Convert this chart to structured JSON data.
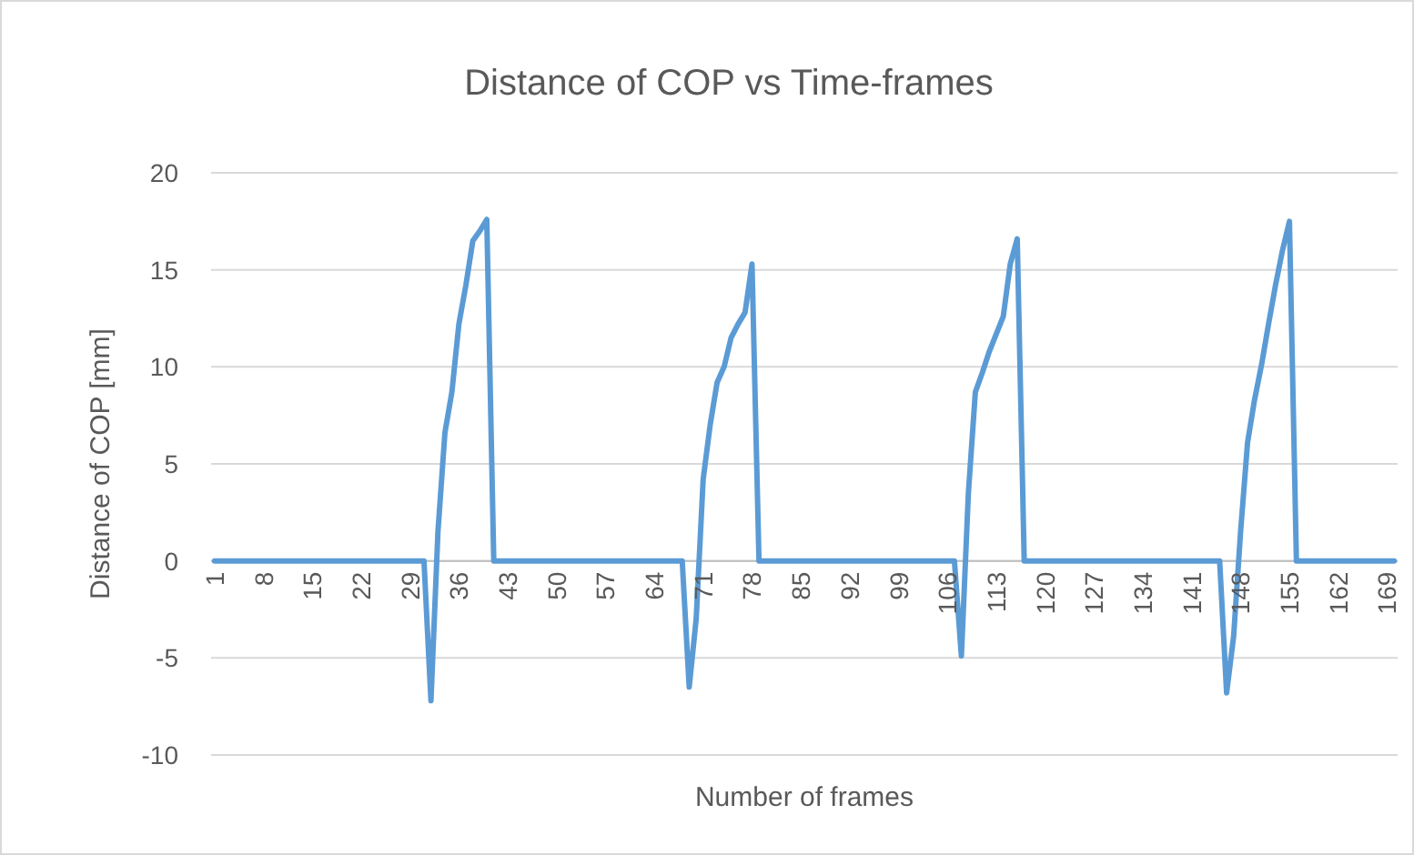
{
  "chart_data": {
    "type": "line",
    "title": "Distance of COP vs Time-frames",
    "xlabel": "Number of frames",
    "ylabel": "Distance of COP [mm]",
    "xlim": [
      0.5,
      170.5
    ],
    "xticks": [
      1,
      8,
      15,
      22,
      29,
      36,
      43,
      50,
      57,
      64,
      71,
      78,
      85,
      92,
      99,
      106,
      113,
      120,
      127,
      134,
      141,
      148,
      155,
      162,
      169
    ],
    "ylim": [
      -10,
      20
    ],
    "yticks": [
      -10,
      -5,
      0,
      5,
      10,
      15,
      20
    ],
    "grid": "y",
    "marker": "none",
    "line_style": "solid",
    "series": [
      {
        "color": "#5b9bd5",
        "x": [
          1,
          31,
          32,
          33,
          34,
          35,
          36,
          37,
          38,
          39,
          40,
          41,
          68,
          69,
          70,
          71,
          72,
          73,
          74,
          75,
          76,
          77,
          78,
          79,
          107,
          108,
          109,
          110,
          111,
          112,
          113,
          114,
          115,
          116,
          117,
          145,
          146,
          147,
          148,
          149,
          150,
          151,
          152,
          153,
          154,
          155,
          156,
          170
        ],
        "values": [
          0,
          0,
          -7.2,
          1.5,
          6.6,
          8.7,
          12.2,
          14.2,
          16.5,
          17.0,
          17.6,
          0,
          0,
          -6.5,
          -3.0,
          4.2,
          7.0,
          9.2,
          10.0,
          11.5,
          12.2,
          12.8,
          15.3,
          0,
          0,
          -4.9,
          3.5,
          8.7,
          9.7,
          10.8,
          11.7,
          12.6,
          15.3,
          16.6,
          0,
          0,
          -6.8,
          -3.9,
          1.5,
          6.1,
          8.3,
          10.1,
          12.2,
          14.2,
          16.0,
          17.5,
          0,
          0
        ]
      }
    ]
  }
}
